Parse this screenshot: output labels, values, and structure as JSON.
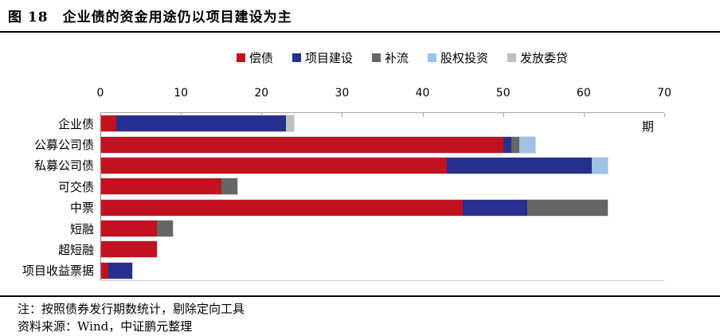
{
  "title": "图 18　企业债的资金用途仍以项目建设为主",
  "notes": {
    "note": "注：按照债券发行期数统计，剔除定向工具",
    "source": "资料来源：Wind，中证鹏元整理"
  },
  "chart_data": {
    "type": "bar",
    "orientation": "horizontal",
    "title": "图 18　企业债的资金用途仍以项目建设为主",
    "categories": [
      "企业债",
      "公募公司债",
      "私募公司债",
      "可交债",
      "中票",
      "短融",
      "超短融",
      "项目收益票据"
    ],
    "series": [
      {
        "name": "偿债",
        "color": "#C1121E",
        "values": [
          2,
          50,
          43,
          15,
          45,
          7,
          7,
          1
        ]
      },
      {
        "name": "项目建设",
        "color": "#27308C",
        "values": [
          21,
          1,
          18,
          0,
          8,
          0,
          0,
          3
        ]
      },
      {
        "name": "补流",
        "color": "#666666",
        "values": [
          0,
          1,
          0,
          2,
          10,
          2,
          0,
          0
        ]
      },
      {
        "name": "股权投资",
        "color": "#9DC3E6",
        "values": [
          0,
          2,
          2,
          0,
          0,
          0,
          0,
          0
        ]
      },
      {
        "name": "发放委贷",
        "color": "#BFBFBF",
        "values": [
          1,
          0,
          0,
          0,
          0,
          0,
          0,
          0
        ]
      }
    ],
    "xlim": [
      0,
      70
    ],
    "xticks": [
      0,
      10,
      20,
      30,
      40,
      50,
      60,
      70
    ],
    "axis_unit": "期",
    "legend_position": "top",
    "grid": false
  }
}
